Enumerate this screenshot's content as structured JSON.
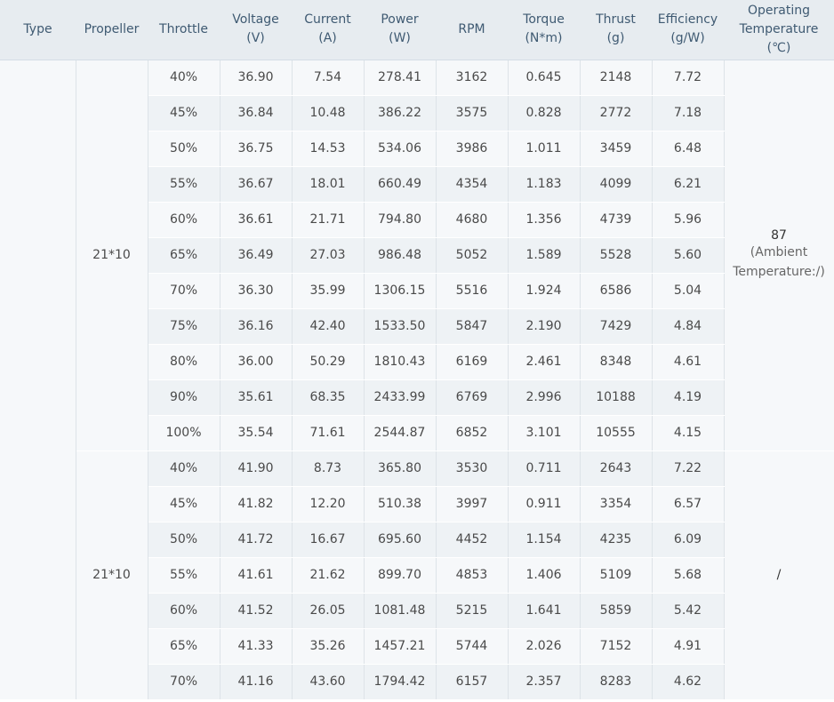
{
  "headers": [
    {
      "lines": [
        "Type"
      ]
    },
    {
      "lines": [
        "Propeller"
      ]
    },
    {
      "lines": [
        "Throttle"
      ]
    },
    {
      "lines": [
        "Voltage",
        "(V)"
      ]
    },
    {
      "lines": [
        "Current",
        "(A)"
      ]
    },
    {
      "lines": [
        "Power",
        "(W)"
      ]
    },
    {
      "lines": [
        "RPM"
      ]
    },
    {
      "lines": [
        "Torque",
        "(N*m)"
      ]
    },
    {
      "lines": [
        "Thrust",
        "(g)"
      ]
    },
    {
      "lines": [
        "Efficiency",
        "(g/W)"
      ]
    },
    {
      "lines": [
        "Operating",
        "Temperature",
        "(℃)"
      ]
    }
  ],
  "groups": [
    {
      "propeller": "21*10",
      "temperature": "87",
      "temperature_note": "(Ambient Temperature:/)",
      "rows": [
        [
          "40%",
          "36.90",
          "7.54",
          "278.41",
          "3162",
          "0.645",
          "2148",
          "7.72"
        ],
        [
          "45%",
          "36.84",
          "10.48",
          "386.22",
          "3575",
          "0.828",
          "2772",
          "7.18"
        ],
        [
          "50%",
          "36.75",
          "14.53",
          "534.06",
          "3986",
          "1.011",
          "3459",
          "6.48"
        ],
        [
          "55%",
          "36.67",
          "18.01",
          "660.49",
          "4354",
          "1.183",
          "4099",
          "6.21"
        ],
        [
          "60%",
          "36.61",
          "21.71",
          "794.80",
          "4680",
          "1.356",
          "4739",
          "5.96"
        ],
        [
          "65%",
          "36.49",
          "27.03",
          "986.48",
          "5052",
          "1.589",
          "5528",
          "5.60"
        ],
        [
          "70%",
          "36.30",
          "35.99",
          "1306.15",
          "5516",
          "1.924",
          "6586",
          "5.04"
        ],
        [
          "75%",
          "36.16",
          "42.40",
          "1533.50",
          "5847",
          "2.190",
          "7429",
          "4.84"
        ],
        [
          "80%",
          "36.00",
          "50.29",
          "1810.43",
          "6169",
          "2.461",
          "8348",
          "4.61"
        ],
        [
          "90%",
          "35.61",
          "68.35",
          "2433.99",
          "6769",
          "2.996",
          "10188",
          "4.19"
        ],
        [
          "100%",
          "35.54",
          "71.61",
          "2544.87",
          "6852",
          "3.101",
          "10555",
          "4.15"
        ]
      ]
    },
    {
      "propeller": "21*10",
      "temperature": "/",
      "temperature_note": "",
      "rows": [
        [
          "40%",
          "41.90",
          "8.73",
          "365.80",
          "3530",
          "0.711",
          "2643",
          "7.22"
        ],
        [
          "45%",
          "41.82",
          "12.20",
          "510.38",
          "3997",
          "0.911",
          "3354",
          "6.57"
        ],
        [
          "50%",
          "41.72",
          "16.67",
          "695.60",
          "4452",
          "1.154",
          "4235",
          "6.09"
        ],
        [
          "55%",
          "41.61",
          "21.62",
          "899.70",
          "4853",
          "1.406",
          "5109",
          "5.68"
        ],
        [
          "60%",
          "41.52",
          "26.05",
          "1081.48",
          "5215",
          "1.641",
          "5859",
          "5.42"
        ],
        [
          "65%",
          "41.33",
          "35.26",
          "1457.21",
          "5744",
          "2.026",
          "7152",
          "4.91"
        ],
        [
          "70%",
          "41.16",
          "43.60",
          "1794.42",
          "6157",
          "2.357",
          "8283",
          "4.62"
        ]
      ]
    }
  ],
  "colors": {
    "header_bg": "#e7ecf0",
    "header_text": "#3f5a72",
    "row_alt": "#eef2f5",
    "row_base": "#f6f8fa"
  }
}
